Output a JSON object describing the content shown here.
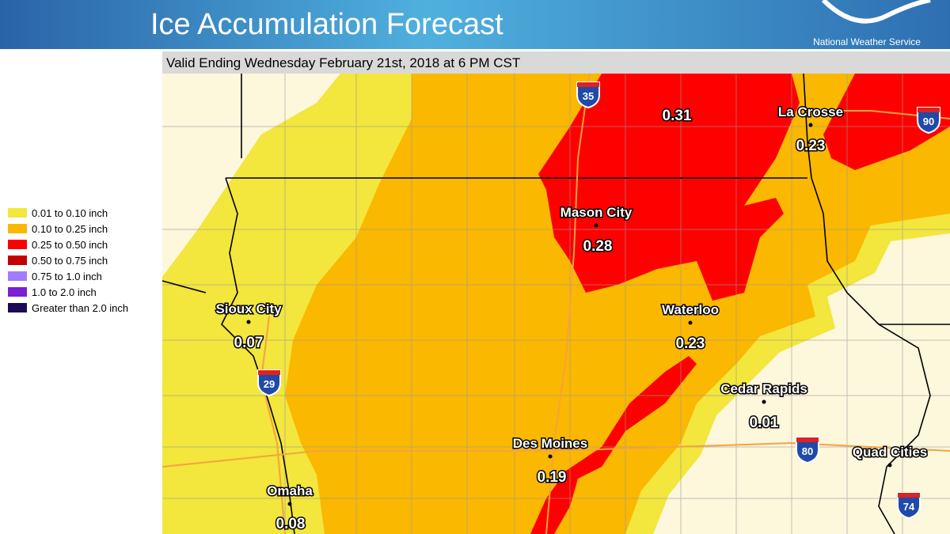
{
  "header": {
    "title": "Ice Accumulation Forecast",
    "agency": "National Weather Service"
  },
  "subtitle": "Valid Ending Wednesday February 21st, 2018 at 6 PM CST",
  "legend": [
    {
      "label": "0.01 to 0.10 inch",
      "color": "#f3e63c"
    },
    {
      "label": "0.10 to 0.25 inch",
      "color": "#fbb800"
    },
    {
      "label": "0.25 to 0.50 inch",
      "color": "#ff0000"
    },
    {
      "label": "0.50 to 0.75 inch",
      "color": "#c40000"
    },
    {
      "label": "0.75 to 1.0 inch",
      "color": "#a07cff"
    },
    {
      "label": "1.0 to 2.0 inch",
      "color": "#7a1fd6"
    },
    {
      "label": "Greater than 2.0 inch",
      "color": "#1c0a55"
    }
  ],
  "cities": [
    {
      "name": "La Crosse",
      "value": 0.23
    },
    {
      "name": "Mason City",
      "value": 0.28
    },
    {
      "name": "Sioux City",
      "value": 0.07
    },
    {
      "name": "Waterloo",
      "value": 0.23
    },
    {
      "name": "Cedar Rapids",
      "value": 0.01
    },
    {
      "name": "Des Moines",
      "value": 0.19
    },
    {
      "name": "Omaha",
      "value": 0.08
    },
    {
      "name": "Quad Cities",
      "value": null
    }
  ],
  "point_values": [
    0.31
  ],
  "interstates": [
    35,
    90,
    29,
    80,
    74
  ]
}
